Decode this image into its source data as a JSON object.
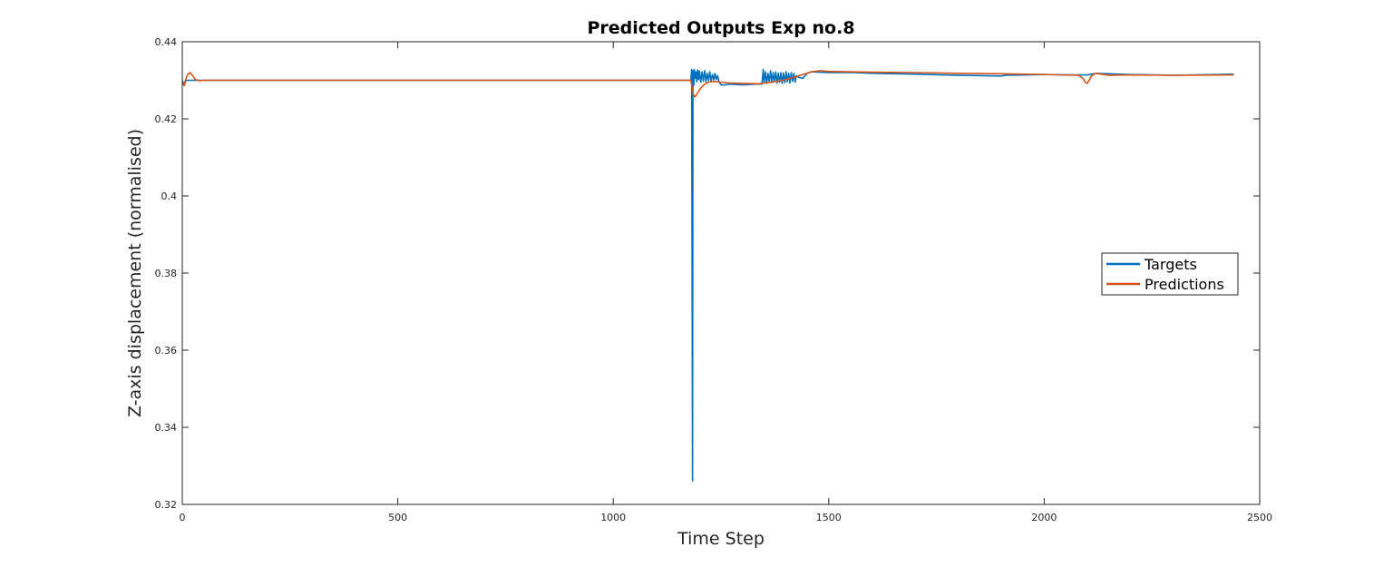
{
  "chart_data": {
    "type": "line",
    "title": "Predicted Outputs Exp no.8",
    "xlabel": "Time Step",
    "ylabel": "Z-axis displacement (normalised)",
    "xlim": [
      0,
      2500
    ],
    "ylim": [
      0.32,
      0.44
    ],
    "xticks": [
      0,
      500,
      1000,
      1500,
      2000,
      2500
    ],
    "xtick_labels": [
      "0",
      "500",
      "1000",
      "1500",
      "2000",
      "2500"
    ],
    "yticks": [
      0.32,
      0.34,
      0.36,
      0.38,
      0.4,
      0.42,
      0.44
    ],
    "ytick_labels": [
      "0.32",
      "0.34",
      "0.36",
      "0.38",
      "0.4",
      "0.42",
      "0.44"
    ],
    "grid": false,
    "legend_position": "right",
    "series": [
      {
        "name": "Targets",
        "color": "#0072BD",
        "x": [
          0,
          3,
          6,
          10,
          20,
          1180,
          1182,
          1183,
          1184,
          1185,
          1186,
          1187,
          1188,
          1190,
          1192,
          1194,
          1196,
          1198,
          1200,
          1203,
          1206,
          1209,
          1212,
          1215,
          1218,
          1221,
          1224,
          1227,
          1230,
          1233,
          1236,
          1239,
          1242,
          1245,
          1250,
          1260,
          1270,
          1300,
          1330,
          1345,
          1348,
          1350,
          1353,
          1356,
          1359,
          1362,
          1365,
          1368,
          1371,
          1374,
          1377,
          1380,
          1383,
          1386,
          1389,
          1392,
          1395,
          1398,
          1401,
          1404,
          1407,
          1410,
          1413,
          1416,
          1419,
          1422,
          1425,
          1430,
          1440,
          1450,
          1460,
          1500,
          1560,
          1600,
          1700,
          1800,
          1900,
          1910,
          2000,
          2050,
          2100,
          2120,
          2200,
          2300,
          2400,
          2440
        ],
        "y": [
          0.43,
          0.4288,
          0.4296,
          0.43,
          0.43,
          0.43,
          0.4328,
          0.3785,
          0.3261,
          0.4325,
          0.4318,
          0.4288,
          0.4328,
          0.4305,
          0.4322,
          0.4296,
          0.4327,
          0.4302,
          0.4324,
          0.4295,
          0.4322,
          0.4298,
          0.4325,
          0.4296,
          0.4318,
          0.4299,
          0.4322,
          0.4297,
          0.4315,
          0.4301,
          0.4318,
          0.4302,
          0.4312,
          0.4298,
          0.4288,
          0.4288,
          0.429,
          0.4288,
          0.429,
          0.429,
          0.4328,
          0.4295,
          0.4322,
          0.4292,
          0.4318,
          0.4296,
          0.4325,
          0.4294,
          0.432,
          0.4296,
          0.4322,
          0.4293,
          0.4318,
          0.4295,
          0.432,
          0.4292,
          0.4319,
          0.4294,
          0.4322,
          0.4296,
          0.4318,
          0.4293,
          0.432,
          0.4297,
          0.4318,
          0.4295,
          0.4312,
          0.4308,
          0.4305,
          0.4318,
          0.4322,
          0.432,
          0.432,
          0.4318,
          0.4316,
          0.4313,
          0.4311,
          0.4313,
          0.4315,
          0.4314,
          0.4314,
          0.4318,
          0.4315,
          0.4313,
          0.4315,
          0.4316
        ]
      },
      {
        "name": "Predictions",
        "color": "#D95319",
        "x": [
          0,
          5,
          8,
          12,
          18,
          24,
          30,
          40,
          50,
          60,
          1180,
          1186,
          1190,
          1195,
          1200,
          1210,
          1220,
          1235,
          1250,
          1270,
          1300,
          1340,
          1350,
          1380,
          1400,
          1420,
          1440,
          1460,
          1480,
          1500,
          1600,
          1700,
          1800,
          1900,
          2000,
          2080,
          2090,
          2095,
          2100,
          2105,
          2110,
          2120,
          2150,
          2200,
          2300,
          2440
        ],
        "y": [
          0.4295,
          0.4286,
          0.4302,
          0.4314,
          0.432,
          0.4312,
          0.4302,
          0.4299,
          0.43,
          0.43,
          0.43,
          0.4262,
          0.4257,
          0.4266,
          0.4275,
          0.4288,
          0.4295,
          0.4297,
          0.4295,
          0.4293,
          0.4292,
          0.4291,
          0.4293,
          0.4297,
          0.4302,
          0.4308,
          0.4315,
          0.4322,
          0.4325,
          0.4323,
          0.4321,
          0.432,
          0.4318,
          0.4317,
          0.4315,
          0.4313,
          0.4305,
          0.4295,
          0.4292,
          0.4301,
          0.4312,
          0.4318,
          0.4313,
          0.4314,
          0.4313,
          0.4314
        ]
      }
    ]
  }
}
